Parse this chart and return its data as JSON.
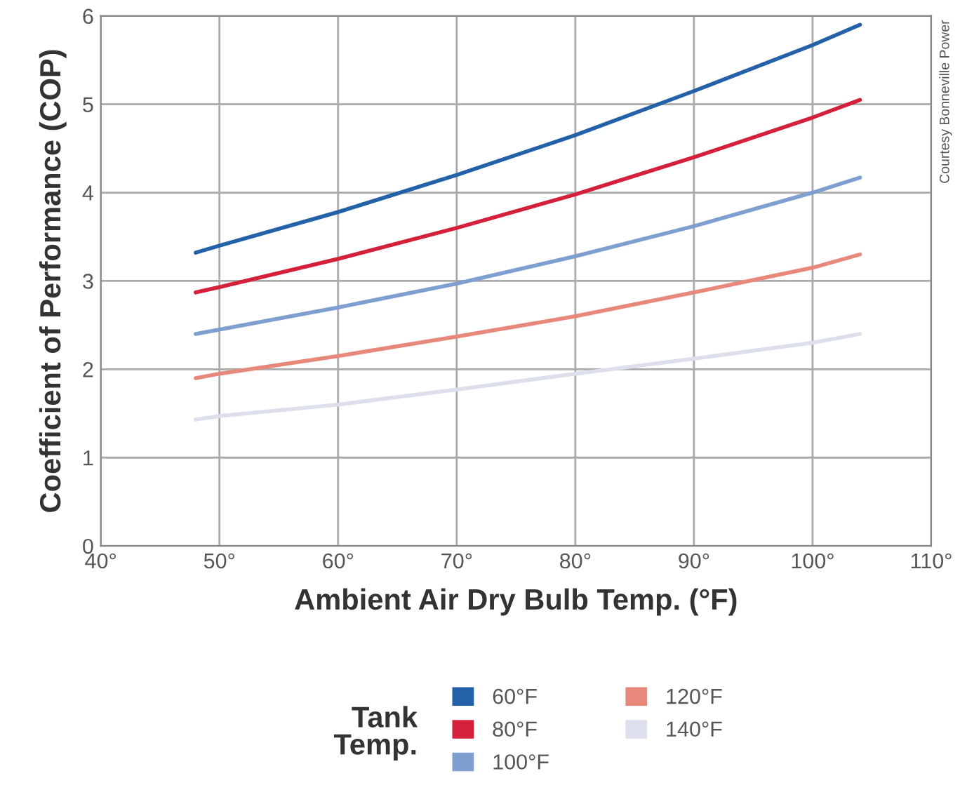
{
  "chart_data": {
    "type": "line",
    "xlabel": "Ambient Air Dry Bulb Temp. (°F)",
    "ylabel": "Coefficient of Performance (COP)",
    "legend_title": "Tank\nTemp.",
    "x": [
      48,
      50,
      60,
      70,
      80,
      90,
      100,
      104
    ],
    "series": [
      {
        "name": "60°F",
        "color": "#2361a8",
        "values": [
          3.32,
          3.4,
          3.78,
          4.2,
          4.65,
          5.15,
          5.67,
          5.9
        ]
      },
      {
        "name": "80°F",
        "color": "#d4203a",
        "values": [
          2.87,
          2.93,
          3.25,
          3.6,
          3.98,
          4.4,
          4.85,
          5.05
        ]
      },
      {
        "name": "100°F",
        "color": "#7f9fd0",
        "values": [
          2.4,
          2.45,
          2.7,
          2.97,
          3.28,
          3.62,
          4.0,
          4.17
        ]
      },
      {
        "name": "120°F",
        "color": "#e8887a",
        "values": [
          1.9,
          1.95,
          2.15,
          2.37,
          2.6,
          2.87,
          3.15,
          3.3
        ]
      },
      {
        "name": "140°F",
        "color": "#dde0ec",
        "values": [
          1.43,
          1.47,
          1.6,
          1.77,
          1.95,
          2.12,
          2.3,
          2.4
        ]
      }
    ],
    "xlim": [
      40,
      110
    ],
    "xticks": [
      {
        "value": 40,
        "label": "40°"
      },
      {
        "value": 50,
        "label": "50°"
      },
      {
        "value": 60,
        "label": "60°"
      },
      {
        "value": 70,
        "label": "70°"
      },
      {
        "value": 80,
        "label": "80°"
      },
      {
        "value": 90,
        "label": "90°"
      },
      {
        "value": 100,
        "label": "100°"
      },
      {
        "value": 110,
        "label": "110°"
      }
    ],
    "ylim": [
      0,
      6
    ],
    "yticks": [
      0,
      1,
      2,
      3,
      4,
      5,
      6
    ],
    "grid": true,
    "legend": "bottom",
    "marker": "none",
    "line_style": "solid",
    "annotations": [
      "Courtesy Bonneville Power"
    ]
  }
}
